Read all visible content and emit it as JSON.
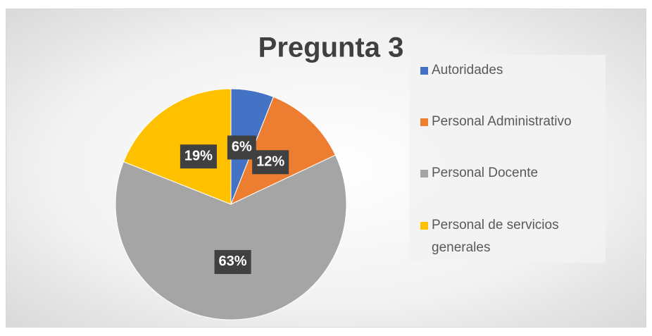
{
  "chart_data": {
    "type": "pie",
    "title": "Pregunta 3",
    "categories": [
      "Autoridades",
      "Personal Administrativo",
      "Personal Docente",
      "Personal de servicios generales"
    ],
    "values": [
      6,
      12,
      63,
      19
    ],
    "value_labels": [
      "6%",
      "12%",
      "63%",
      "19%"
    ],
    "colors": [
      "#4472c4",
      "#ed7d31",
      "#a5a5a5",
      "#ffc000"
    ],
    "legend": "right"
  }
}
